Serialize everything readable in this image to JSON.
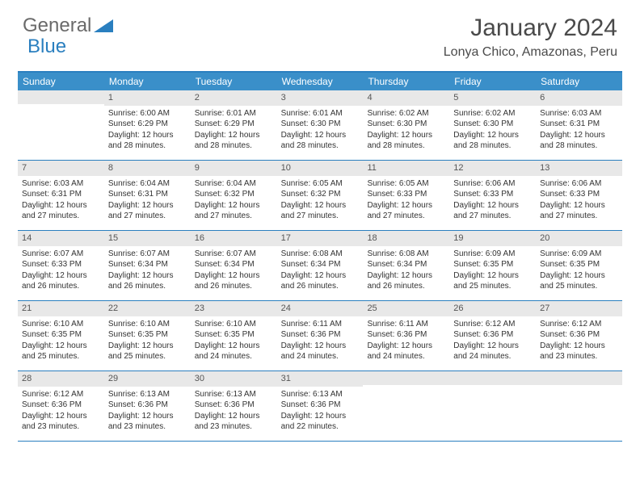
{
  "logo": {
    "text1": "General",
    "text2": "Blue"
  },
  "title": "January 2024",
  "location": "Lonya Chico, Amazonas, Peru",
  "weekdays": [
    "Sunday",
    "Monday",
    "Tuesday",
    "Wednesday",
    "Thursday",
    "Friday",
    "Saturday"
  ],
  "header_bg": "#3a8fc9",
  "border_color": "#2a7fbf",
  "daynum_bg": "#e8e8e8",
  "weeks": [
    [
      null,
      {
        "n": "1",
        "sr": "Sunrise: 6:00 AM",
        "ss": "Sunset: 6:29 PM",
        "dl1": "Daylight: 12 hours",
        "dl2": "and 28 minutes."
      },
      {
        "n": "2",
        "sr": "Sunrise: 6:01 AM",
        "ss": "Sunset: 6:29 PM",
        "dl1": "Daylight: 12 hours",
        "dl2": "and 28 minutes."
      },
      {
        "n": "3",
        "sr": "Sunrise: 6:01 AM",
        "ss": "Sunset: 6:30 PM",
        "dl1": "Daylight: 12 hours",
        "dl2": "and 28 minutes."
      },
      {
        "n": "4",
        "sr": "Sunrise: 6:02 AM",
        "ss": "Sunset: 6:30 PM",
        "dl1": "Daylight: 12 hours",
        "dl2": "and 28 minutes."
      },
      {
        "n": "5",
        "sr": "Sunrise: 6:02 AM",
        "ss": "Sunset: 6:30 PM",
        "dl1": "Daylight: 12 hours",
        "dl2": "and 28 minutes."
      },
      {
        "n": "6",
        "sr": "Sunrise: 6:03 AM",
        "ss": "Sunset: 6:31 PM",
        "dl1": "Daylight: 12 hours",
        "dl2": "and 28 minutes."
      }
    ],
    [
      {
        "n": "7",
        "sr": "Sunrise: 6:03 AM",
        "ss": "Sunset: 6:31 PM",
        "dl1": "Daylight: 12 hours",
        "dl2": "and 27 minutes."
      },
      {
        "n": "8",
        "sr": "Sunrise: 6:04 AM",
        "ss": "Sunset: 6:31 PM",
        "dl1": "Daylight: 12 hours",
        "dl2": "and 27 minutes."
      },
      {
        "n": "9",
        "sr": "Sunrise: 6:04 AM",
        "ss": "Sunset: 6:32 PM",
        "dl1": "Daylight: 12 hours",
        "dl2": "and 27 minutes."
      },
      {
        "n": "10",
        "sr": "Sunrise: 6:05 AM",
        "ss": "Sunset: 6:32 PM",
        "dl1": "Daylight: 12 hours",
        "dl2": "and 27 minutes."
      },
      {
        "n": "11",
        "sr": "Sunrise: 6:05 AM",
        "ss": "Sunset: 6:33 PM",
        "dl1": "Daylight: 12 hours",
        "dl2": "and 27 minutes."
      },
      {
        "n": "12",
        "sr": "Sunrise: 6:06 AM",
        "ss": "Sunset: 6:33 PM",
        "dl1": "Daylight: 12 hours",
        "dl2": "and 27 minutes."
      },
      {
        "n": "13",
        "sr": "Sunrise: 6:06 AM",
        "ss": "Sunset: 6:33 PM",
        "dl1": "Daylight: 12 hours",
        "dl2": "and 27 minutes."
      }
    ],
    [
      {
        "n": "14",
        "sr": "Sunrise: 6:07 AM",
        "ss": "Sunset: 6:33 PM",
        "dl1": "Daylight: 12 hours",
        "dl2": "and 26 minutes."
      },
      {
        "n": "15",
        "sr": "Sunrise: 6:07 AM",
        "ss": "Sunset: 6:34 PM",
        "dl1": "Daylight: 12 hours",
        "dl2": "and 26 minutes."
      },
      {
        "n": "16",
        "sr": "Sunrise: 6:07 AM",
        "ss": "Sunset: 6:34 PM",
        "dl1": "Daylight: 12 hours",
        "dl2": "and 26 minutes."
      },
      {
        "n": "17",
        "sr": "Sunrise: 6:08 AM",
        "ss": "Sunset: 6:34 PM",
        "dl1": "Daylight: 12 hours",
        "dl2": "and 26 minutes."
      },
      {
        "n": "18",
        "sr": "Sunrise: 6:08 AM",
        "ss": "Sunset: 6:34 PM",
        "dl1": "Daylight: 12 hours",
        "dl2": "and 26 minutes."
      },
      {
        "n": "19",
        "sr": "Sunrise: 6:09 AM",
        "ss": "Sunset: 6:35 PM",
        "dl1": "Daylight: 12 hours",
        "dl2": "and 25 minutes."
      },
      {
        "n": "20",
        "sr": "Sunrise: 6:09 AM",
        "ss": "Sunset: 6:35 PM",
        "dl1": "Daylight: 12 hours",
        "dl2": "and 25 minutes."
      }
    ],
    [
      {
        "n": "21",
        "sr": "Sunrise: 6:10 AM",
        "ss": "Sunset: 6:35 PM",
        "dl1": "Daylight: 12 hours",
        "dl2": "and 25 minutes."
      },
      {
        "n": "22",
        "sr": "Sunrise: 6:10 AM",
        "ss": "Sunset: 6:35 PM",
        "dl1": "Daylight: 12 hours",
        "dl2": "and 25 minutes."
      },
      {
        "n": "23",
        "sr": "Sunrise: 6:10 AM",
        "ss": "Sunset: 6:35 PM",
        "dl1": "Daylight: 12 hours",
        "dl2": "and 24 minutes."
      },
      {
        "n": "24",
        "sr": "Sunrise: 6:11 AM",
        "ss": "Sunset: 6:36 PM",
        "dl1": "Daylight: 12 hours",
        "dl2": "and 24 minutes."
      },
      {
        "n": "25",
        "sr": "Sunrise: 6:11 AM",
        "ss": "Sunset: 6:36 PM",
        "dl1": "Daylight: 12 hours",
        "dl2": "and 24 minutes."
      },
      {
        "n": "26",
        "sr": "Sunrise: 6:12 AM",
        "ss": "Sunset: 6:36 PM",
        "dl1": "Daylight: 12 hours",
        "dl2": "and 24 minutes."
      },
      {
        "n": "27",
        "sr": "Sunrise: 6:12 AM",
        "ss": "Sunset: 6:36 PM",
        "dl1": "Daylight: 12 hours",
        "dl2": "and 23 minutes."
      }
    ],
    [
      {
        "n": "28",
        "sr": "Sunrise: 6:12 AM",
        "ss": "Sunset: 6:36 PM",
        "dl1": "Daylight: 12 hours",
        "dl2": "and 23 minutes."
      },
      {
        "n": "29",
        "sr": "Sunrise: 6:13 AM",
        "ss": "Sunset: 6:36 PM",
        "dl1": "Daylight: 12 hours",
        "dl2": "and 23 minutes."
      },
      {
        "n": "30",
        "sr": "Sunrise: 6:13 AM",
        "ss": "Sunset: 6:36 PM",
        "dl1": "Daylight: 12 hours",
        "dl2": "and 23 minutes."
      },
      {
        "n": "31",
        "sr": "Sunrise: 6:13 AM",
        "ss": "Sunset: 6:36 PM",
        "dl1": "Daylight: 12 hours",
        "dl2": "and 22 minutes."
      },
      null,
      null,
      null
    ]
  ]
}
